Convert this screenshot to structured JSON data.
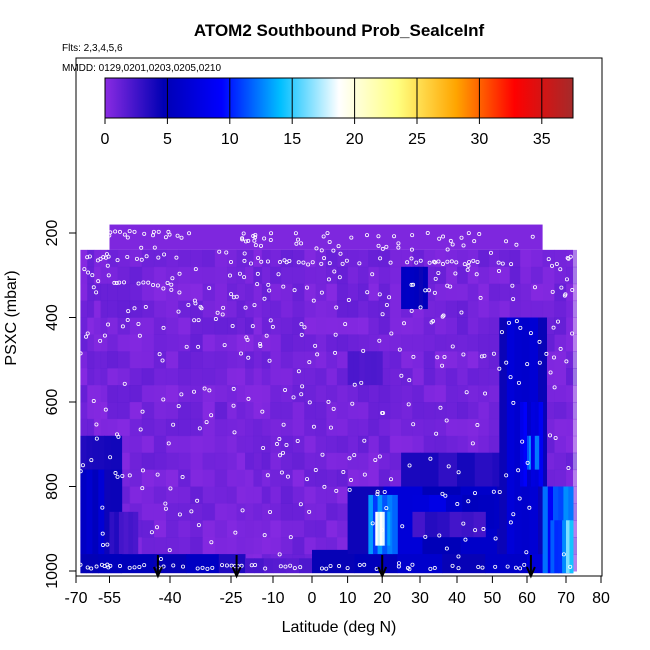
{
  "chart_data": {
    "type": "heatmap",
    "title": "ATOM2 Southbound Prob_SeaIceInf",
    "subtitle_flights": "Flts: 2,3,4,5,6",
    "subtitle_dates": "MMDD: 0129,0201,0203,0205,0210",
    "xlabel": "Latitude (deg N)",
    "ylabel": "PSXC (mbar)",
    "xlim": [
      -70,
      80
    ],
    "ylim": [
      1000,
      80
    ],
    "x_ticks": [
      -70,
      -55,
      -40,
      -25,
      -10,
      0,
      10,
      20,
      30,
      40,
      50,
      60,
      70,
      80
    ],
    "y_ticks": [
      200,
      400,
      600,
      800,
      1000
    ],
    "colorbar": {
      "range": [
        0,
        37.5
      ],
      "ticks": [
        0,
        5,
        10,
        15,
        20,
        25,
        30,
        35
      ],
      "colors": [
        "#8a2be2",
        "#0000b4",
        "#0000ff",
        "#00bfff",
        "#ffffff",
        "#ffff80",
        "#ffa500",
        "#ff0000",
        "#a52a2a"
      ]
    },
    "arrow_latitudes": [
      -43,
      -23,
      20,
      61
    ],
    "data_extent": {
      "lat": [
        -68,
        72
      ],
      "pressure_top": 180,
      "pressure_bottom": 1005
    },
    "features": [
      {
        "lat": [
          -68,
          -52
        ],
        "p": [
          680,
          1005
        ],
        "value": 4
      },
      {
        "lat": [
          -68,
          -52
        ],
        "p": [
          760,
          960
        ],
        "value": 6
      },
      {
        "lat": [
          -55,
          -48
        ],
        "p": [
          860,
          960
        ],
        "value": 3
      },
      {
        "lat": [
          -68,
          -20
        ],
        "p": [
          960,
          1005
        ],
        "value": 5
      },
      {
        "lat": [
          -20,
          0
        ],
        "p": [
          970,
          1005
        ],
        "value": 2
      },
      {
        "lat": [
          0,
          72
        ],
        "p": [
          950,
          1005
        ],
        "value": 6
      },
      {
        "lat": [
          10,
          72
        ],
        "p": [
          800,
          960
        ],
        "value": 6
      },
      {
        "lat": [
          16,
          24
        ],
        "p": [
          820,
          960
        ],
        "value": 13
      },
      {
        "lat": [
          18,
          22
        ],
        "p": [
          860,
          940
        ],
        "value": 16
      },
      {
        "lat": [
          25,
          55
        ],
        "p": [
          720,
          800
        ],
        "value": 4
      },
      {
        "lat": [
          28,
          55
        ],
        "p": [
          820,
          900
        ],
        "value": 7
      },
      {
        "lat": [
          52,
          65
        ],
        "p": [
          400,
          960
        ],
        "value": 6
      },
      {
        "lat": [
          58,
          64
        ],
        "p": [
          600,
          800
        ],
        "value": 8
      },
      {
        "lat": [
          60,
          63
        ],
        "p": [
          680,
          760
        ],
        "value": 11
      },
      {
        "lat": [
          64,
          72
        ],
        "p": [
          800,
          1005
        ],
        "value": 12
      },
      {
        "lat": [
          66,
          72
        ],
        "p": [
          880,
          1005
        ],
        "value": 14
      },
      {
        "lat": [
          25,
          32
        ],
        "p": [
          280,
          380
        ],
        "value": 5
      },
      {
        "lat": [
          10,
          20
        ],
        "p": [
          480,
          560
        ],
        "value": 2
      },
      {
        "lat": [
          28,
          48
        ],
        "p": [
          860,
          920
        ],
        "value": 3
      }
    ]
  }
}
